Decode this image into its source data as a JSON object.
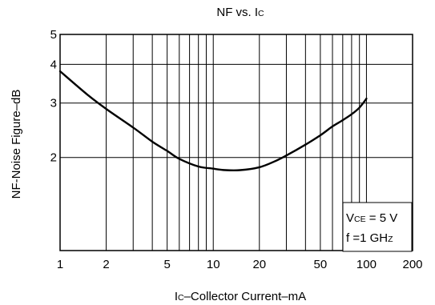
{
  "chart_data": {
    "type": "line",
    "title_main": "NF vs. I",
    "title_sub": "C",
    "xlabel_main": "I",
    "xlabel_sub": "C",
    "xlabel_rest": "–Collector Current–mA",
    "ylabel": "NF-Noise Figure–dB",
    "x_scale": "log",
    "y_scale": "log",
    "xlim": [
      1,
      200
    ],
    "ylim": [
      1,
      5
    ],
    "grid": true,
    "x_ticks": [
      {
        "value": 1,
        "label": "1"
      },
      {
        "value": 2,
        "label": "2"
      },
      {
        "value": 5,
        "label": "5"
      },
      {
        "value": 10,
        "label": "10"
      },
      {
        "value": 20,
        "label": "20"
      },
      {
        "value": 50,
        "label": "50"
      },
      {
        "value": 100,
        "label": "100"
      },
      {
        "value": 200,
        "label": "200"
      }
    ],
    "y_ticks": [
      {
        "value": 2,
        "label": "2"
      },
      {
        "value": 3,
        "label": "3"
      },
      {
        "value": 4,
        "label": "4"
      },
      {
        "value": 5,
        "label": "5"
      }
    ],
    "annotation": {
      "line1_main": "V",
      "line1_sub": "CE",
      "line1_rest": " = 5 V",
      "line2_main": "f =1 GH",
      "line2_sub": "Z"
    },
    "series": [
      {
        "x": [
          1,
          1.5,
          2,
          3,
          4,
          5,
          6,
          8,
          10,
          12,
          15,
          20,
          25,
          30,
          40,
          50,
          60,
          70,
          80,
          90,
          100
        ],
        "y": [
          3.8,
          3.2,
          2.87,
          2.5,
          2.25,
          2.1,
          1.98,
          1.87,
          1.84,
          1.82,
          1.82,
          1.86,
          1.94,
          2.03,
          2.2,
          2.36,
          2.52,
          2.64,
          2.76,
          2.9,
          3.1
        ]
      }
    ]
  }
}
